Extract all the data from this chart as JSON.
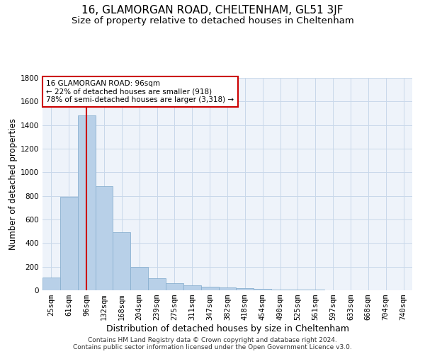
{
  "title": "16, GLAMORGAN ROAD, CHELTENHAM, GL51 3JF",
  "subtitle": "Size of property relative to detached houses in Cheltenham",
  "xlabel": "Distribution of detached houses by size in Cheltenham",
  "ylabel": "Number of detached properties",
  "footer_line1": "Contains HM Land Registry data © Crown copyright and database right 2024.",
  "footer_line2": "Contains public sector information licensed under the Open Government Licence v3.0.",
  "categories": [
    "25sqm",
    "61sqm",
    "96sqm",
    "132sqm",
    "168sqm",
    "204sqm",
    "239sqm",
    "275sqm",
    "311sqm",
    "347sqm",
    "382sqm",
    "418sqm",
    "454sqm",
    "490sqm",
    "525sqm",
    "561sqm",
    "597sqm",
    "633sqm",
    "668sqm",
    "704sqm",
    "740sqm"
  ],
  "values": [
    110,
    790,
    1480,
    880,
    490,
    200,
    100,
    60,
    40,
    30,
    25,
    20,
    15,
    8,
    5,
    4,
    3,
    2,
    2,
    1,
    1
  ],
  "bar_color": "#b8d0e8",
  "bar_edge_color": "#8ab0d0",
  "grid_color": "#c8d8ea",
  "highlight_index": 2,
  "highlight_color": "#cc0000",
  "ylim": [
    0,
    1800
  ],
  "yticks": [
    0,
    200,
    400,
    600,
    800,
    1000,
    1200,
    1400,
    1600,
    1800
  ],
  "annotation_title": "16 GLAMORGAN ROAD: 96sqm",
  "annotation_line1": "← 22% of detached houses are smaller (918)",
  "annotation_line2": "78% of semi-detached houses are larger (3,318) →",
  "annotation_box_color": "#ffffff",
  "annotation_border_color": "#cc0000",
  "title_fontsize": 11,
  "subtitle_fontsize": 9.5,
  "axis_label_fontsize": 8.5,
  "tick_fontsize": 7.5,
  "annotation_fontsize": 7.5,
  "footer_fontsize": 6.5,
  "bg_color": "#eef3fa"
}
